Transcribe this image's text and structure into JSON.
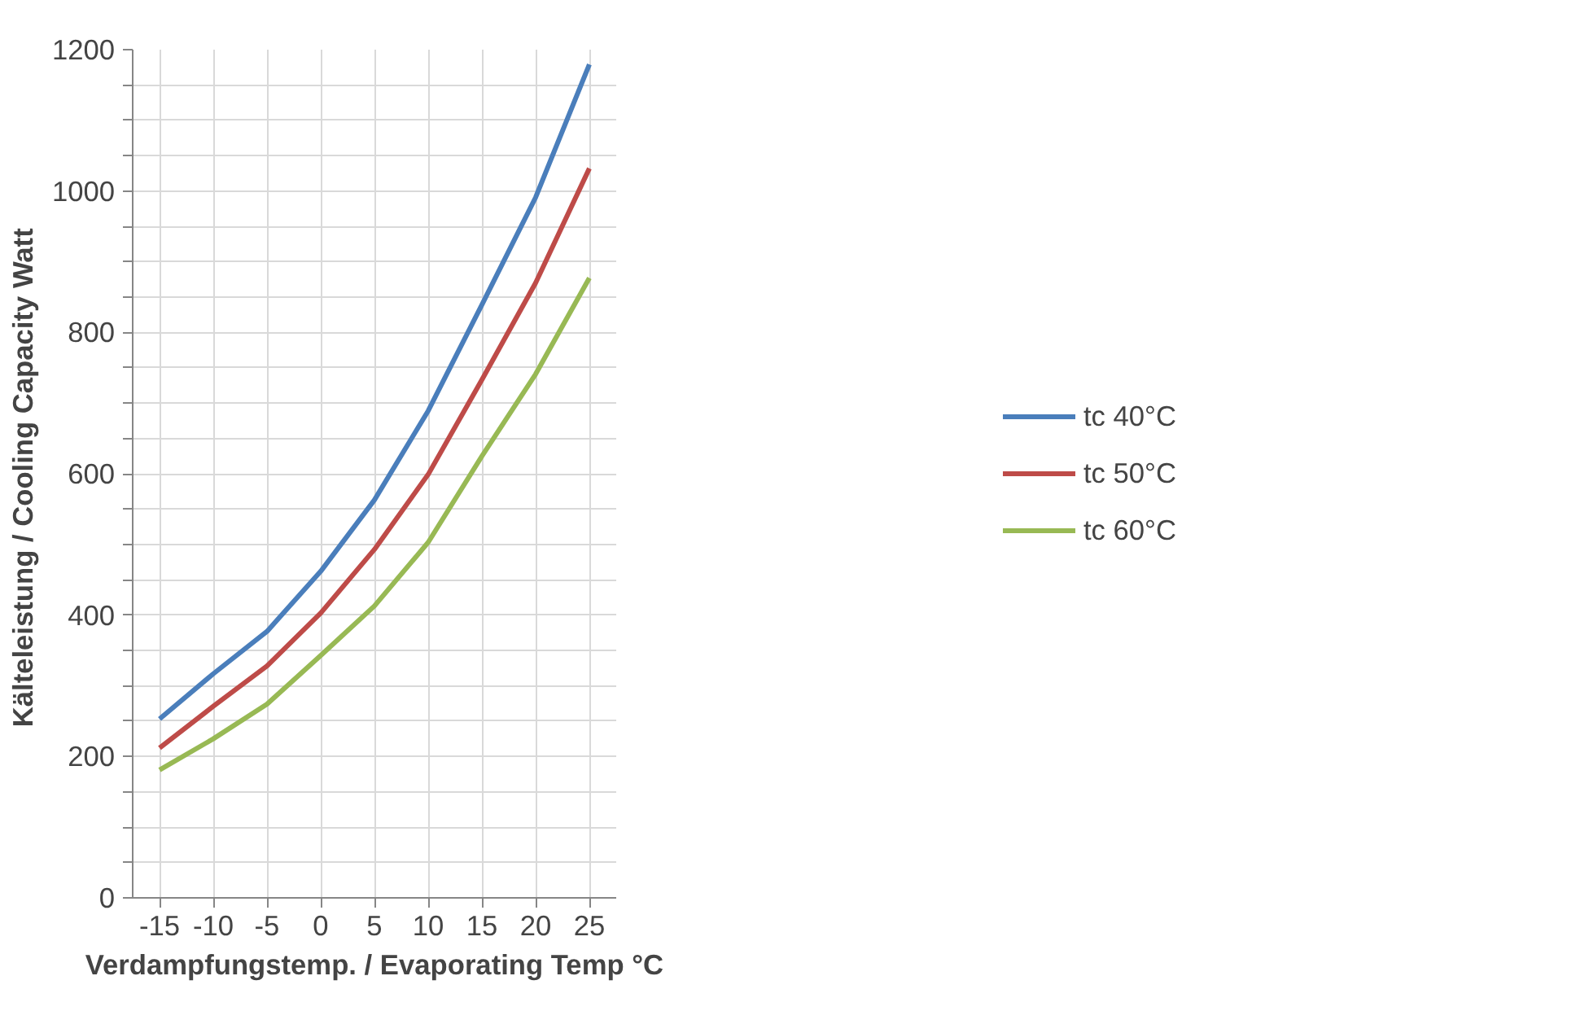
{
  "chart_data": {
    "type": "line",
    "xlabel": "Verdampfungstemp. / Evaporating Temp °C",
    "ylabel": "Kälteleistung / Cooling Capacity  Watt",
    "x": [
      -15,
      -10,
      -5,
      0,
      5,
      10,
      15,
      20,
      25
    ],
    "series": [
      {
        "name": "tc 40°C",
        "color": "#4a7ebb",
        "values": [
          253,
          317,
          377,
          462,
          563,
          689,
          839,
          991,
          1179
        ]
      },
      {
        "name": "tc 50°C",
        "color": "#be4b48",
        "values": [
          212,
          271,
          328,
          403,
          493,
          599,
          733,
          870,
          1032
        ]
      },
      {
        "name": "tc 60°C",
        "color": "#98b954",
        "values": [
          181,
          225,
          274,
          343,
          413,
          503,
          625,
          741,
          877
        ]
      }
    ],
    "xlim": [
      -17.5,
      27.5
    ],
    "xticks": [
      -15,
      -10,
      -5,
      0,
      5,
      10,
      15,
      20,
      25
    ],
    "ylim": [
      0,
      1200
    ],
    "yticks": [
      0,
      {
        "value": 50,
        "label": null
      },
      {
        "value": 100,
        "label": null
      },
      {
        "value": 150,
        "label": null
      },
      200,
      {
        "value": 250,
        "label": null
      },
      {
        "value": 300,
        "label": null
      },
      {
        "value": 350,
        "label": null
      },
      400,
      {
        "value": 450,
        "label": null
      },
      {
        "value": 500,
        "label": null
      },
      {
        "value": 550,
        "label": null
      },
      600,
      {
        "value": 650,
        "label": null
      },
      {
        "value": 700,
        "label": null
      },
      {
        "value": 750,
        "label": null
      },
      800,
      {
        "value": 850,
        "label": null
      },
      {
        "value": 900,
        "label": null
      },
      {
        "value": 950,
        "label": null
      },
      1000,
      {
        "value": 1050,
        "label": null
      },
      {
        "value": 1100,
        "label": null
      },
      {
        "value": 1150,
        "label": null
      },
      1200
    ],
    "grid": true,
    "legend": "right",
    "marker": "none",
    "line_style": "solid"
  }
}
